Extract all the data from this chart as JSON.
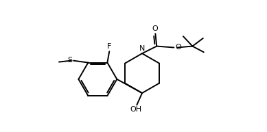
{
  "bg_color": "#ffffff",
  "line_color": "#000000",
  "lw": 1.4,
  "fig_width": 3.89,
  "fig_height": 1.93,
  "dpi": 100,
  "xlim": [
    -0.5,
    13.5
  ],
  "ylim": [
    0.5,
    10.5
  ]
}
